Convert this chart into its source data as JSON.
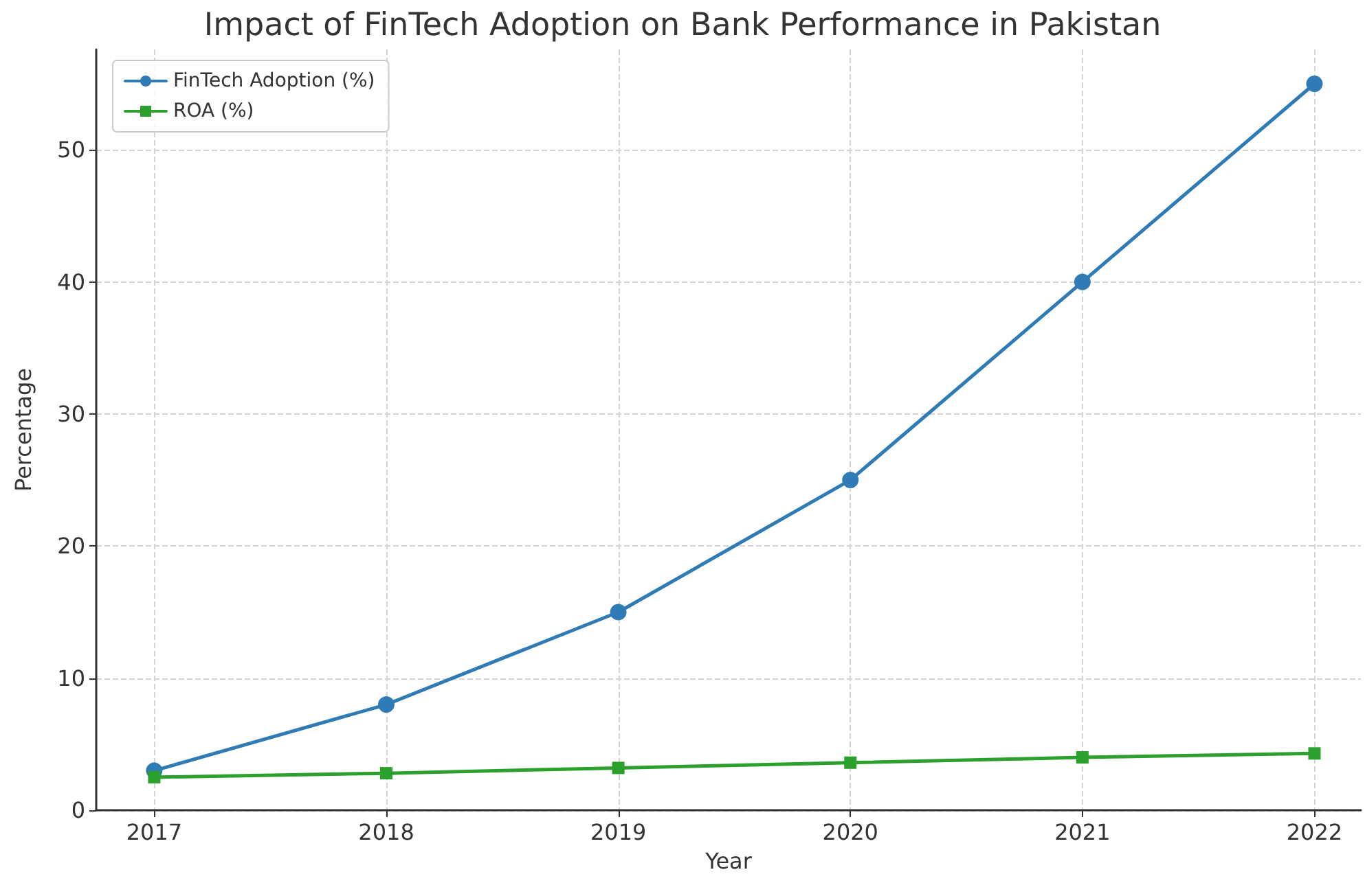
{
  "chart_data": {
    "type": "line",
    "title": "Impact of FinTech Adoption on Bank Performance in Pakistan",
    "xlabel": "Year",
    "ylabel": "Percentage",
    "x": [
      2017,
      2018,
      2019,
      2020,
      2021,
      2022
    ],
    "series": [
      {
        "name": "FinTech Adoption (%)",
        "color": "#2f7bb5",
        "marker": "circle",
        "values": [
          3,
          8,
          15,
          25,
          40,
          55
        ]
      },
      {
        "name": "ROA (%)",
        "color": "#2ca02c",
        "marker": "square",
        "values": [
          2.5,
          2.8,
          3.2,
          3.6,
          4.0,
          4.3
        ]
      }
    ],
    "xlim": [
      2016.75,
      2022.2
    ],
    "xticks": [
      2017,
      2018,
      2019,
      2020,
      2021,
      2022
    ],
    "ylim": [
      0,
      57.6
    ],
    "yticks": [
      0,
      10,
      20,
      30,
      40,
      50
    ],
    "grid": true,
    "legend": "top left",
    "line_style": "solid"
  }
}
